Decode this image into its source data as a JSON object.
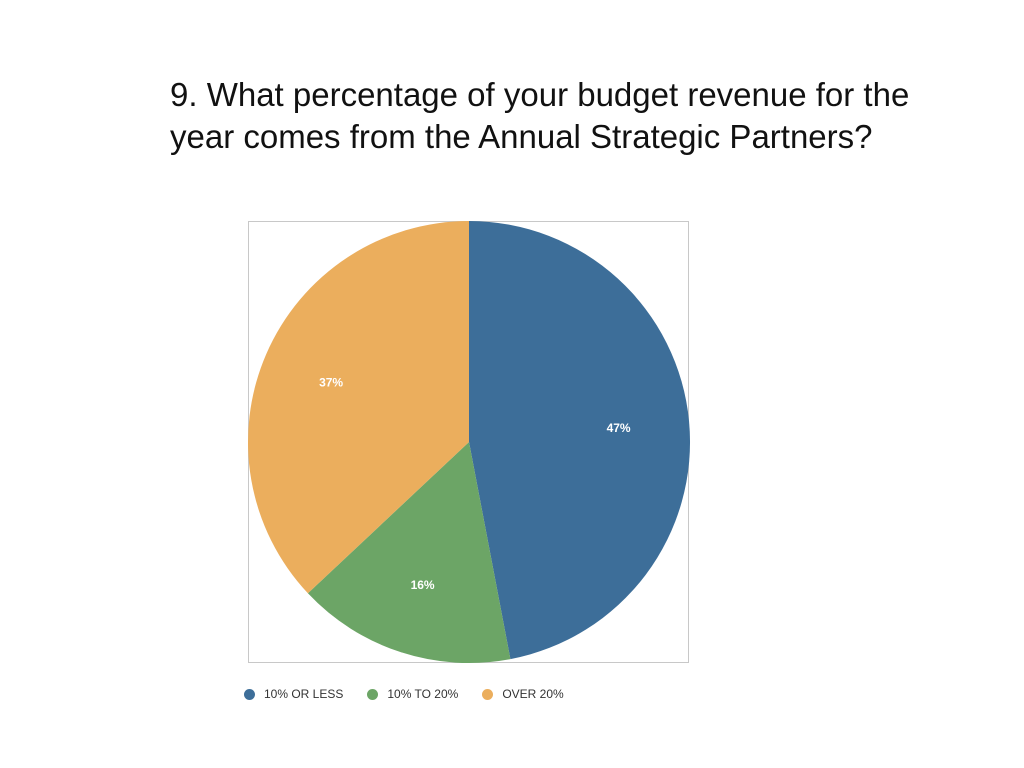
{
  "slide": {
    "title": "9. What percentage of your budget revenue for the year comes from the Annual Strategic Partners?"
  },
  "chart_data": {
    "type": "pie",
    "title": "",
    "categories": [
      "10% OR LESS",
      "10% TO 20%",
      "OVER 20%"
    ],
    "values": [
      47,
      16,
      37
    ],
    "value_labels": [
      "47%",
      "16%",
      "37%"
    ],
    "colors": [
      "#3d6e99",
      "#6ca566",
      "#ebae5d"
    ],
    "start_angle": "12 o'clock",
    "direction": "clockwise",
    "legend_position": "bottom"
  }
}
